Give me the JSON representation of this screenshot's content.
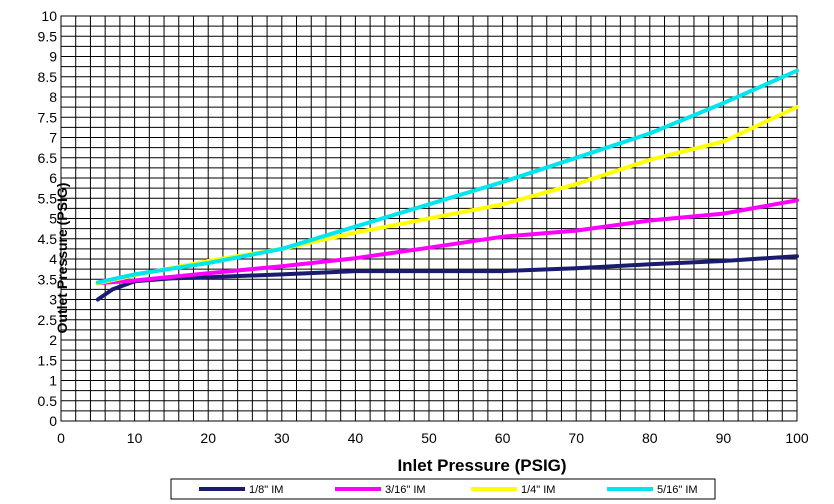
{
  "chart_data": {
    "type": "line",
    "title": "",
    "xlabel": "Inlet Pressure  (PSIG)",
    "ylabel": "Outlet Pressure (PSIG)",
    "xlim": [
      0,
      100
    ],
    "ylim": [
      0,
      10
    ],
    "x_ticks": [
      0,
      10,
      20,
      30,
      40,
      50,
      60,
      70,
      80,
      90,
      100
    ],
    "y_ticks": [
      0,
      0.5,
      1,
      1.5,
      2,
      2.5,
      3,
      3.5,
      4,
      4.5,
      5,
      5.5,
      6,
      6.5,
      7,
      7.5,
      8,
      8.5,
      9,
      9.5,
      10
    ],
    "grid": true,
    "legend_position": "bottom",
    "series": [
      {
        "name": "1/8\" IM",
        "color": "#1a1a6e",
        "x": [
          5,
          7,
          10,
          15,
          20,
          30,
          40,
          50,
          60,
          70,
          80,
          90,
          100
        ],
        "y": [
          3.0,
          3.25,
          3.45,
          3.52,
          3.55,
          3.62,
          3.7,
          3.7,
          3.7,
          3.77,
          3.87,
          3.95,
          4.07
        ]
      },
      {
        "name": "3/16\" IM",
        "color": "#ff00ff",
        "x": [
          5,
          10,
          20,
          30,
          40,
          50,
          60,
          70,
          80,
          90,
          100
        ],
        "y": [
          3.4,
          3.47,
          3.65,
          3.82,
          4.02,
          4.28,
          4.55,
          4.7,
          4.95,
          5.12,
          5.45
        ]
      },
      {
        "name": "1/4\" IM",
        "color": "#ffff00",
        "x": [
          5,
          10,
          20,
          30,
          40,
          50,
          60,
          70,
          80,
          90,
          100
        ],
        "y": [
          3.4,
          3.6,
          3.95,
          4.25,
          4.65,
          5.0,
          5.35,
          5.85,
          6.45,
          6.9,
          7.75
        ]
      },
      {
        "name": "5/16\" IM",
        "color": "#00e5ee",
        "x": [
          5,
          10,
          20,
          30,
          40,
          50,
          60,
          70,
          80,
          90,
          100
        ],
        "y": [
          3.42,
          3.62,
          3.9,
          4.25,
          4.8,
          5.35,
          5.9,
          6.5,
          7.1,
          7.85,
          8.65
        ]
      }
    ]
  }
}
